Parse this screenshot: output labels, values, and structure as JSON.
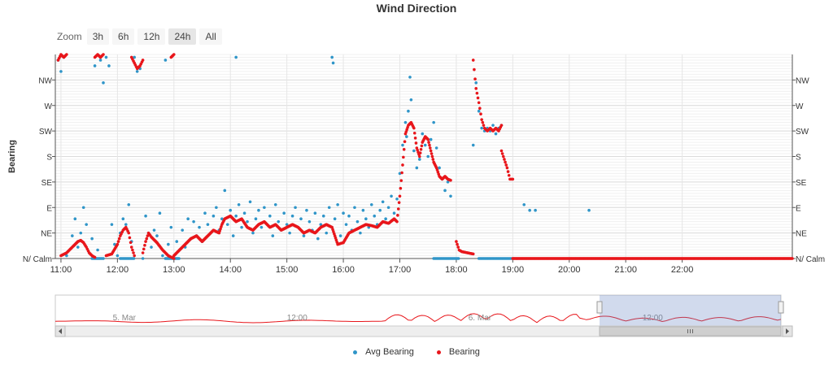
{
  "chart_data": {
    "type": "scatter",
    "title": "Wind Direction",
    "ylabel": "Bearing",
    "y_categories": [
      "N/ Calm",
      "NE",
      "E",
      "SE",
      "S",
      "SW",
      "W",
      "NW"
    ],
    "ylim": [
      0,
      360
    ],
    "x_ticks": [
      "11:00",
      "12:00",
      "13:00",
      "14:00",
      "15:00",
      "16:00",
      "17:00",
      "18:00",
      "19:00",
      "20:00",
      "21:00",
      "22:00"
    ],
    "x_range_hours": [
      10.9,
      23.95
    ],
    "series": [
      {
        "name": "Avg Bearing",
        "color": "#2f95c8",
        "points": [
          [
            10.95,
            350
          ],
          [
            11.0,
            330
          ],
          [
            11.05,
            355
          ],
          [
            11.1,
            5
          ],
          [
            11.2,
            40
          ],
          [
            11.25,
            70
          ],
          [
            11.3,
            20
          ],
          [
            11.35,
            45
          ],
          [
            11.4,
            90
          ],
          [
            11.45,
            60
          ],
          [
            11.5,
            10
          ],
          [
            11.55,
            35
          ],
          [
            11.6,
            340
          ],
          [
            11.65,
            15
          ],
          [
            11.7,
            350
          ],
          [
            11.75,
            310
          ],
          [
            11.8,
            355
          ],
          [
            11.85,
            340
          ],
          [
            11.9,
            60
          ],
          [
            11.95,
            25
          ],
          [
            12.0,
            5
          ],
          [
            12.05,
            45
          ],
          [
            12.1,
            70
          ],
          [
            12.15,
            60
          ],
          [
            12.2,
            95
          ],
          [
            12.25,
            30
          ],
          [
            12.3,
            355
          ],
          [
            12.35,
            330
          ],
          [
            12.4,
            335
          ],
          [
            12.45,
            0
          ],
          [
            12.5,
            75
          ],
          [
            12.55,
            45
          ],
          [
            12.6,
            20
          ],
          [
            12.65,
            50
          ],
          [
            12.7,
            40
          ],
          [
            12.75,
            80
          ],
          [
            12.8,
            5
          ],
          [
            12.85,
            350
          ],
          [
            12.9,
            25
          ],
          [
            12.95,
            55
          ],
          [
            13.0,
            0
          ],
          [
            13.05,
            30
          ],
          [
            13.1,
            15
          ],
          [
            13.15,
            50
          ],
          [
            13.2,
            20
          ],
          [
            13.25,
            70
          ],
          [
            13.3,
            35
          ],
          [
            13.35,
            65
          ],
          [
            13.4,
            40
          ],
          [
            13.45,
            55
          ],
          [
            13.5,
            30
          ],
          [
            13.55,
            80
          ],
          [
            13.6,
            60
          ],
          [
            13.65,
            45
          ],
          [
            13.7,
            75
          ],
          [
            13.75,
            90
          ],
          [
            13.8,
            50
          ],
          [
            13.85,
            70
          ],
          [
            13.9,
            120
          ],
          [
            13.95,
            60
          ],
          [
            14.0,
            85
          ],
          [
            14.05,
            40
          ],
          [
            14.1,
            75
          ],
          [
            14.15,
            95
          ],
          [
            14.2,
            55
          ],
          [
            14.25,
            80
          ],
          [
            14.3,
            65
          ],
          [
            14.35,
            100
          ],
          [
            14.4,
            45
          ],
          [
            14.45,
            70
          ],
          [
            14.5,
            85
          ],
          [
            14.55,
            55
          ],
          [
            14.6,
            90
          ],
          [
            14.65,
            60
          ],
          [
            14.7,
            75
          ],
          [
            14.75,
            40
          ],
          [
            14.8,
            95
          ],
          [
            14.85,
            65
          ],
          [
            14.9,
            50
          ],
          [
            14.95,
            80
          ],
          [
            15.0,
            60
          ],
          [
            15.05,
            45
          ],
          [
            15.1,
            75
          ],
          [
            15.15,
            90
          ],
          [
            15.2,
            55
          ],
          [
            15.25,
            70
          ],
          [
            15.3,
            40
          ],
          [
            15.35,
            85
          ],
          [
            15.4,
            65
          ],
          [
            15.45,
            50
          ],
          [
            15.5,
            80
          ],
          [
            15.55,
            35
          ],
          [
            15.6,
            60
          ],
          [
            15.65,
            75
          ],
          [
            15.7,
            45
          ],
          [
            15.75,
            90
          ],
          [
            15.8,
            55
          ],
          [
            15.85,
            70
          ],
          [
            15.9,
            95
          ],
          [
            15.95,
            40
          ],
          [
            16.0,
            80
          ],
          [
            16.05,
            60
          ],
          [
            16.1,
            75
          ],
          [
            16.15,
            50
          ],
          [
            16.2,
            90
          ],
          [
            16.25,
            65
          ],
          [
            16.3,
            45
          ],
          [
            16.35,
            85
          ],
          [
            16.4,
            70
          ],
          [
            16.45,
            55
          ],
          [
            16.5,
            95
          ],
          [
            16.55,
            75
          ],
          [
            16.6,
            60
          ],
          [
            16.65,
            85
          ],
          [
            16.7,
            100
          ],
          [
            16.75,
            70
          ],
          [
            16.8,
            90
          ],
          [
            16.85,
            110
          ],
          [
            16.9,
            80
          ],
          [
            16.95,
            105
          ],
          [
            17.0,
            150
          ],
          [
            17.05,
            200
          ],
          [
            17.1,
            240
          ],
          [
            17.12,
            215
          ],
          [
            17.15,
            260
          ],
          [
            17.18,
            320
          ],
          [
            17.2,
            280
          ],
          [
            17.25,
            190
          ],
          [
            17.3,
            160
          ],
          [
            17.35,
            175
          ],
          [
            17.4,
            220
          ],
          [
            17.45,
            200
          ],
          [
            17.5,
            180
          ],
          [
            17.55,
            210
          ],
          [
            17.6,
            240
          ],
          [
            17.65,
            195
          ],
          [
            17.7,
            160
          ],
          [
            17.75,
            140
          ],
          [
            17.8,
            120
          ],
          [
            17.85,
            135
          ],
          [
            17.9,
            110
          ],
          [
            18.3,
            200
          ],
          [
            18.35,
            310
          ],
          [
            18.4,
            260
          ],
          [
            18.45,
            230
          ],
          [
            18.5,
            225
          ],
          [
            18.55,
            230
          ],
          [
            18.6,
            225
          ],
          [
            18.65,
            235
          ],
          [
            18.7,
            220
          ],
          [
            18.75,
            230
          ],
          [
            18.8,
            235
          ],
          [
            19.2,
            95
          ],
          [
            19.3,
            85
          ],
          [
            19.4,
            85
          ],
          [
            20.35,
            85
          ],
          [
            15.8,
            355
          ],
          [
            15.82,
            345
          ],
          [
            14.1,
            355
          ]
        ],
        "zero_band_hours": [
          [
            11.55,
            11.75
          ],
          [
            12.05,
            12.3
          ],
          [
            12.85,
            13.1
          ],
          [
            17.6,
            18.05
          ],
          [
            18.4,
            19.0
          ]
        ]
      },
      {
        "name": "Bearing",
        "color": "#e8161b",
        "segments": [
          [
            [
              10.95,
              350
            ],
            [
              11.0,
              360
            ],
            [
              11.05,
              355
            ],
            [
              11.1,
              360
            ]
          ],
          [
            [
              11.0,
              5
            ],
            [
              11.1,
              10
            ],
            [
              11.2,
              20
            ],
            [
              11.3,
              30
            ],
            [
              11.35,
              32
            ],
            [
              11.4,
              28
            ],
            [
              11.45,
              20
            ],
            [
              11.5,
              10
            ],
            [
              11.55,
              5
            ],
            [
              11.6,
              2
            ]
          ],
          [
            [
              11.6,
              355
            ],
            [
              11.65,
              360
            ],
            [
              11.7,
              355
            ],
            [
              11.75,
              360
            ]
          ],
          [
            [
              11.8,
              5
            ],
            [
              11.9,
              8
            ],
            [
              12.0,
              25
            ],
            [
              12.05,
              40
            ],
            [
              12.1,
              50
            ],
            [
              12.15,
              55
            ],
            [
              12.2,
              45
            ],
            [
              12.25,
              20
            ],
            [
              12.3,
              5
            ]
          ],
          [
            [
              12.25,
              355
            ],
            [
              12.3,
              345
            ],
            [
              12.35,
              335
            ],
            [
              12.4,
              340
            ],
            [
              12.45,
              350
            ]
          ],
          [
            [
              12.45,
              10
            ],
            [
              12.5,
              30
            ],
            [
              12.55,
              45
            ],
            [
              12.6,
              38
            ],
            [
              12.7,
              28
            ],
            [
              12.8,
              15
            ],
            [
              12.9,
              5
            ],
            [
              13.0,
              0
            ]
          ],
          [
            [
              12.95,
              355
            ],
            [
              13.0,
              360
            ]
          ],
          [
            [
              13.0,
              5
            ],
            [
              13.1,
              15
            ],
            [
              13.2,
              25
            ],
            [
              13.3,
              35
            ],
            [
              13.4,
              40
            ],
            [
              13.5,
              30
            ],
            [
              13.6,
              40
            ],
            [
              13.7,
              50
            ],
            [
              13.8,
              45
            ],
            [
              13.85,
              60
            ],
            [
              13.9,
              70
            ],
            [
              14.0,
              75
            ],
            [
              14.1,
              65
            ],
            [
              14.2,
              70
            ],
            [
              14.3,
              55
            ],
            [
              14.4,
              50
            ],
            [
              14.5,
              60
            ],
            [
              14.6,
              65
            ],
            [
              14.7,
              55
            ],
            [
              14.8,
              60
            ],
            [
              14.9,
              50
            ],
            [
              15.0,
              55
            ],
            [
              15.1,
              60
            ],
            [
              15.2,
              55
            ],
            [
              15.3,
              45
            ],
            [
              15.4,
              50
            ],
            [
              15.5,
              45
            ],
            [
              15.6,
              55
            ],
            [
              15.7,
              60
            ],
            [
              15.8,
              55
            ],
            [
              15.85,
              40
            ],
            [
              15.9,
              25
            ],
            [
              16.0,
              28
            ],
            [
              16.1,
              45
            ],
            [
              16.2,
              50
            ],
            [
              16.3,
              55
            ],
            [
              16.4,
              60
            ],
            [
              16.5,
              58
            ],
            [
              16.6,
              55
            ],
            [
              16.7,
              65
            ],
            [
              16.8,
              62
            ],
            [
              16.9,
              70
            ],
            [
              16.95,
              65
            ],
            [
              17.0,
              110
            ],
            [
              17.05,
              165
            ],
            [
              17.1,
              220
            ],
            [
              17.15,
              235
            ],
            [
              17.2,
              240
            ],
            [
              17.25,
              230
            ],
            [
              17.3,
              195
            ],
            [
              17.35,
              180
            ],
            [
              17.4,
              205
            ],
            [
              17.45,
              215
            ],
            [
              17.5,
              210
            ],
            [
              17.55,
              190
            ],
            [
              17.6,
              170
            ],
            [
              17.65,
              160
            ],
            [
              17.7,
              145
            ],
            [
              17.75,
              140
            ],
            [
              17.8,
              145
            ],
            [
              17.85,
              140
            ],
            [
              17.9,
              138
            ]
          ],
          [
            [
              18.0,
              30
            ],
            [
              18.05,
              15
            ],
            [
              18.1,
              12
            ],
            [
              18.2,
              10
            ],
            [
              18.3,
              8
            ]
          ],
          [
            [
              18.3,
              350
            ],
            [
              18.35,
              300
            ],
            [
              18.4,
              275
            ],
            [
              18.45,
              245
            ],
            [
              18.5,
              230
            ],
            [
              18.55,
              225
            ],
            [
              18.6,
              230
            ],
            [
              18.65,
              225
            ],
            [
              18.7,
              230
            ],
            [
              18.75,
              225
            ],
            [
              18.8,
              235
            ]
          ],
          [
            [
              18.8,
              190
            ],
            [
              18.85,
              175
            ],
            [
              18.9,
              160
            ],
            [
              18.95,
              140
            ],
            [
              19.0,
              140
            ]
          ],
          [
            [
              19.0,
              0
            ],
            [
              23.95,
              0
            ]
          ]
        ]
      }
    ],
    "legend": {
      "position": "bottom-center",
      "entries": [
        "Avg Bearing",
        "Bearing"
      ]
    },
    "navigator": {
      "labels": [
        "5. Mar",
        "12:00",
        "6. Mar",
        "12:00"
      ],
      "selection_start_fraction": 0.75,
      "selection_end_fraction": 1.0
    },
    "grid": true
  },
  "ui": {
    "zoom_label": "Zoom",
    "zoom_buttons": [
      "3h",
      "6h",
      "12h",
      "24h",
      "All"
    ],
    "active_zoom": "24h"
  }
}
